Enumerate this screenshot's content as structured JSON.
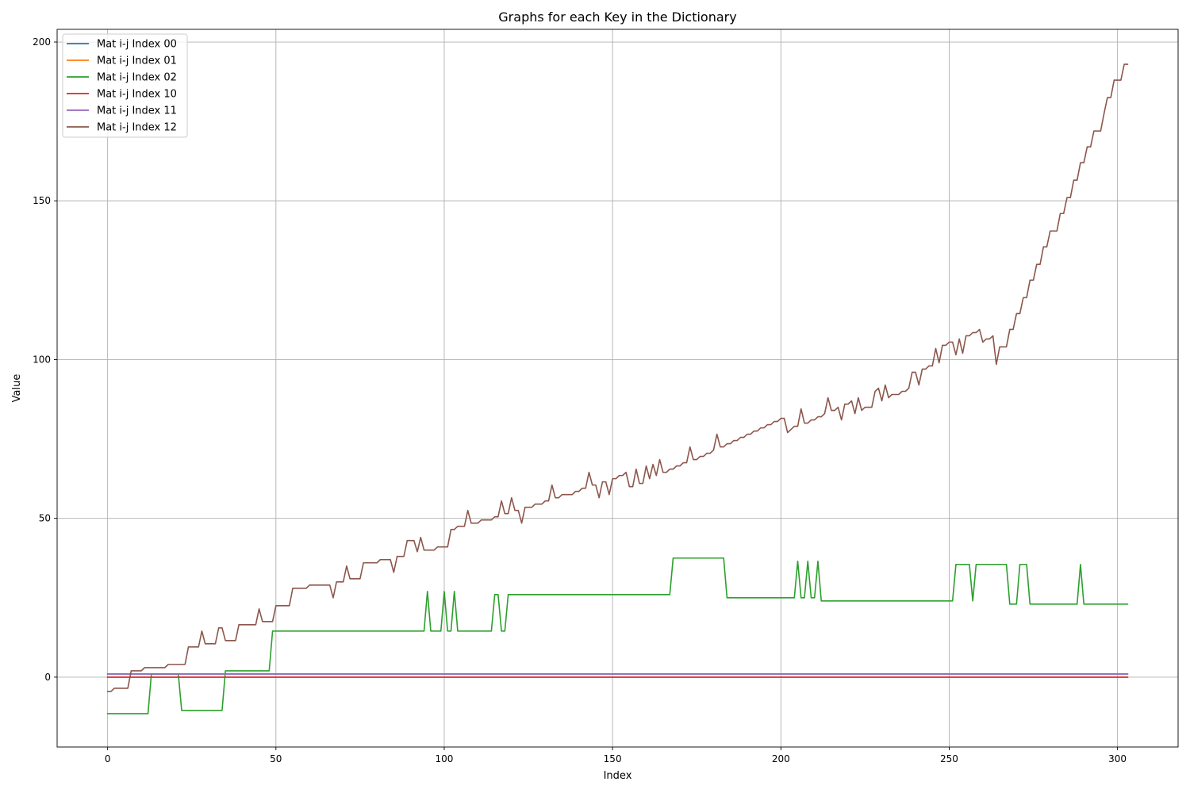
{
  "chart_data": {
    "type": "line",
    "title": "Graphs for each Key in the Dictionary",
    "xlabel": "Index",
    "ylabel": "Value",
    "xlim": [
      -15,
      318
    ],
    "ylim": [
      -22,
      204
    ],
    "xticks": [
      0,
      50,
      100,
      150,
      200,
      250,
      300
    ],
    "yticks": [
      0,
      50,
      100,
      150,
      200
    ],
    "grid": true,
    "legend_position": "top-left",
    "series": [
      {
        "name": "Mat i-j Index 00",
        "color": "#1f77b4",
        "points": [
          [
            0,
            1
          ],
          [
            303,
            1
          ]
        ]
      },
      {
        "name": "Mat i-j Index 01",
        "color": "#ff7f0e",
        "points": [
          [
            0,
            0
          ],
          [
            303,
            0
          ]
        ]
      },
      {
        "name": "Mat i-j Index 02",
        "color": "#2ca02c",
        "points": [
          [
            0,
            -11.5
          ],
          [
            12,
            -11.5
          ],
          [
            13,
            1
          ],
          [
            21,
            1
          ],
          [
            22,
            -10.5
          ],
          [
            34,
            -10.5
          ],
          [
            35,
            2
          ],
          [
            48,
            2
          ],
          [
            49,
            14.5
          ],
          [
            94,
            14.5
          ],
          [
            95,
            27
          ],
          [
            96,
            14.5
          ],
          [
            99,
            14.5
          ],
          [
            100,
            27
          ],
          [
            101,
            14.5
          ],
          [
            102,
            14.5
          ],
          [
            103,
            27
          ],
          [
            104,
            14.5
          ],
          [
            114,
            14.5
          ],
          [
            115,
            26
          ],
          [
            116,
            26
          ],
          [
            117,
            14.5
          ],
          [
            118,
            14.5
          ],
          [
            119,
            26
          ],
          [
            167,
            26
          ],
          [
            168,
            37.5
          ],
          [
            183,
            37.5
          ],
          [
            184,
            25
          ],
          [
            204,
            25
          ],
          [
            205,
            36.5
          ],
          [
            206,
            25
          ],
          [
            207,
            25
          ],
          [
            208,
            36.5
          ],
          [
            209,
            25
          ],
          [
            210,
            25
          ],
          [
            211,
            36.5
          ],
          [
            212,
            24
          ],
          [
            251,
            24
          ],
          [
            252,
            35.5
          ],
          [
            256,
            35.5
          ],
          [
            257,
            24
          ],
          [
            258,
            35.5
          ],
          [
            267,
            35.5
          ],
          [
            268,
            23
          ],
          [
            270,
            23
          ],
          [
            271,
            35.5
          ],
          [
            273,
            35.5
          ],
          [
            274,
            23
          ],
          [
            288,
            23
          ],
          [
            289,
            35.5
          ],
          [
            290,
            23
          ],
          [
            303,
            23
          ]
        ]
      },
      {
        "name": "Mat i-j Index 10",
        "color": "#d62728",
        "points": [
          [
            0,
            0
          ],
          [
            303,
            0
          ]
        ]
      },
      {
        "name": "Mat i-j Index 11",
        "color": "#9467bd",
        "points": [
          [
            0,
            1
          ],
          [
            303,
            1
          ]
        ]
      },
      {
        "name": "Mat i-j Index 12",
        "color": "#8c564b",
        "points": [
          [
            0,
            -4.5
          ],
          [
            1,
            -4.5
          ],
          [
            2,
            -3.5
          ],
          [
            6,
            -3.5
          ],
          [
            7,
            2
          ],
          [
            10,
            2
          ],
          [
            11,
            3
          ],
          [
            17,
            3
          ],
          [
            18,
            4
          ],
          [
            23,
            4
          ],
          [
            24,
            9.5
          ],
          [
            27,
            9.5
          ],
          [
            28,
            14.5
          ],
          [
            29,
            10.5
          ],
          [
            32,
            10.5
          ],
          [
            33,
            15.5
          ],
          [
            34,
            15.5
          ],
          [
            35,
            11.5
          ],
          [
            38,
            11.5
          ],
          [
            39,
            16.5
          ],
          [
            44,
            16.5
          ],
          [
            45,
            21.5
          ],
          [
            46,
            17.5
          ],
          [
            49,
            17.5
          ],
          [
            50,
            22.5
          ],
          [
            54,
            22.5
          ],
          [
            55,
            28
          ],
          [
            59,
            28
          ],
          [
            60,
            29
          ],
          [
            66,
            29
          ],
          [
            67,
            25
          ],
          [
            68,
            30
          ],
          [
            70,
            30
          ],
          [
            71,
            35
          ],
          [
            72,
            31
          ],
          [
            75,
            31
          ],
          [
            76,
            36
          ],
          [
            80,
            36
          ],
          [
            81,
            37
          ],
          [
            84,
            37
          ],
          [
            85,
            33
          ],
          [
            86,
            38
          ],
          [
            88,
            38
          ],
          [
            89,
            43
          ],
          [
            91,
            43
          ],
          [
            92,
            39.5
          ],
          [
            93,
            44
          ],
          [
            94,
            40
          ],
          [
            97,
            40
          ],
          [
            98,
            41
          ],
          [
            101,
            41
          ],
          [
            102,
            46.5
          ],
          [
            103,
            46.5
          ],
          [
            104,
            47.5
          ],
          [
            106,
            47.5
          ],
          [
            107,
            52.5
          ],
          [
            108,
            48.5
          ],
          [
            110,
            48.5
          ],
          [
            111,
            49.5
          ],
          [
            114,
            49.5
          ],
          [
            115,
            50.5
          ],
          [
            116,
            50.5
          ],
          [
            117,
            55.5
          ],
          [
            118,
            51.5
          ],
          [
            119,
            51.5
          ],
          [
            120,
            56.5
          ],
          [
            121,
            52.5
          ],
          [
            122,
            52.5
          ],
          [
            123,
            48.5
          ],
          [
            124,
            53.5
          ],
          [
            126,
            53.5
          ],
          [
            127,
            54.5
          ],
          [
            129,
            54.5
          ],
          [
            130,
            55.5
          ],
          [
            131,
            55.5
          ],
          [
            132,
            60.5
          ],
          [
            133,
            56.5
          ],
          [
            134,
            56.5
          ],
          [
            135,
            57.5
          ],
          [
            138,
            57.5
          ],
          [
            139,
            58.5
          ],
          [
            140,
            58.5
          ],
          [
            141,
            59.5
          ],
          [
            142,
            59.5
          ],
          [
            143,
            64.5
          ],
          [
            144,
            60.5
          ],
          [
            145,
            60.5
          ],
          [
            146,
            56.5
          ],
          [
            147,
            61.5
          ],
          [
            148,
            61.5
          ],
          [
            149,
            57.5
          ],
          [
            150,
            62.5
          ],
          [
            151,
            62.5
          ],
          [
            152,
            63.5
          ],
          [
            153,
            63.5
          ],
          [
            154,
            64.5
          ],
          [
            155,
            60
          ],
          [
            156,
            60
          ],
          [
            157,
            65.5
          ],
          [
            158,
            61
          ],
          [
            159,
            61
          ],
          [
            160,
            66.5
          ],
          [
            161,
            62.5
          ],
          [
            162,
            67
          ],
          [
            163,
            63.5
          ],
          [
            164,
            68.5
          ],
          [
            165,
            64.5
          ],
          [
            166,
            64.5
          ],
          [
            167,
            65.5
          ],
          [
            168,
            65.5
          ],
          [
            169,
            66.5
          ],
          [
            170,
            66.5
          ],
          [
            171,
            67.5
          ],
          [
            172,
            67.5
          ],
          [
            173,
            72.5
          ],
          [
            174,
            68.5
          ],
          [
            175,
            68.5
          ],
          [
            176,
            69.5
          ],
          [
            177,
            69.5
          ],
          [
            178,
            70.5
          ],
          [
            179,
            70.5
          ],
          [
            180,
            71.5
          ],
          [
            181,
            76.5
          ],
          [
            182,
            72.5
          ],
          [
            183,
            72.5
          ],
          [
            184,
            73.5
          ],
          [
            185,
            73.5
          ],
          [
            186,
            74.5
          ],
          [
            187,
            74.5
          ],
          [
            188,
            75.5
          ],
          [
            189,
            75.5
          ],
          [
            190,
            76.5
          ],
          [
            191,
            76.5
          ],
          [
            192,
            77.5
          ],
          [
            193,
            77.5
          ],
          [
            194,
            78.5
          ],
          [
            195,
            78.5
          ],
          [
            196,
            79.5
          ],
          [
            197,
            79.5
          ],
          [
            198,
            80.5
          ],
          [
            199,
            80.5
          ],
          [
            200,
            81.5
          ],
          [
            201,
            81.5
          ],
          [
            202,
            77
          ],
          [
            203,
            78
          ],
          [
            204,
            79
          ],
          [
            205,
            79
          ],
          [
            206,
            84.5
          ],
          [
            207,
            80
          ],
          [
            208,
            80
          ],
          [
            209,
            81
          ],
          [
            210,
            81
          ],
          [
            211,
            82
          ],
          [
            212,
            82
          ],
          [
            213,
            83
          ],
          [
            214,
            88
          ],
          [
            215,
            84
          ],
          [
            216,
            84
          ],
          [
            217,
            85
          ],
          [
            218,
            81
          ],
          [
            219,
            86
          ],
          [
            220,
            86
          ],
          [
            221,
            87
          ],
          [
            222,
            83
          ],
          [
            223,
            88
          ],
          [
            224,
            84
          ],
          [
            225,
            85
          ],
          [
            227,
            85
          ],
          [
            228,
            90
          ],
          [
            229,
            91
          ],
          [
            230,
            87
          ],
          [
            231,
            92
          ],
          [
            232,
            88
          ],
          [
            233,
            89
          ],
          [
            235,
            89
          ],
          [
            236,
            90
          ],
          [
            237,
            90
          ],
          [
            238,
            91
          ],
          [
            239,
            96
          ],
          [
            240,
            96
          ],
          [
            241,
            92
          ],
          [
            242,
            97
          ],
          [
            243,
            97
          ],
          [
            244,
            98
          ],
          [
            245,
            98
          ],
          [
            246,
            103.5
          ],
          [
            247,
            99
          ],
          [
            248,
            104.5
          ],
          [
            249,
            104.5
          ],
          [
            250,
            105.5
          ],
          [
            251,
            105.5
          ],
          [
            252,
            101.5
          ],
          [
            253,
            106.5
          ],
          [
            254,
            102
          ],
          [
            255,
            107.5
          ],
          [
            256,
            107.5
          ],
          [
            257,
            108.5
          ],
          [
            258,
            108.5
          ],
          [
            259,
            109.5
          ],
          [
            260,
            105.5
          ],
          [
            261,
            106.5
          ],
          [
            262,
            106.5
          ],
          [
            263,
            107.5
          ],
          [
            264,
            98.5
          ],
          [
            265,
            104
          ],
          [
            267,
            104
          ],
          [
            268,
            109.5
          ],
          [
            269,
            109.5
          ],
          [
            270,
            114.5
          ],
          [
            271,
            114.5
          ],
          [
            272,
            119.5
          ],
          [
            273,
            119.5
          ],
          [
            274,
            125
          ],
          [
            275,
            125
          ],
          [
            276,
            130
          ],
          [
            277,
            130
          ],
          [
            278,
            135.5
          ],
          [
            279,
            135.5
          ],
          [
            280,
            140.5
          ],
          [
            282,
            140.5
          ],
          [
            283,
            146
          ],
          [
            284,
            146
          ],
          [
            285,
            151
          ],
          [
            286,
            151
          ],
          [
            287,
            156.5
          ],
          [
            288,
            156.5
          ],
          [
            289,
            162
          ],
          [
            290,
            162
          ],
          [
            291,
            167
          ],
          [
            292,
            167
          ],
          [
            293,
            172
          ],
          [
            295,
            172
          ],
          [
            296,
            177.5
          ],
          [
            297,
            182.5
          ],
          [
            298,
            182.5
          ],
          [
            299,
            188
          ],
          [
            301,
            188
          ],
          [
            302,
            193
          ],
          [
            303,
            193
          ]
        ]
      }
    ]
  }
}
